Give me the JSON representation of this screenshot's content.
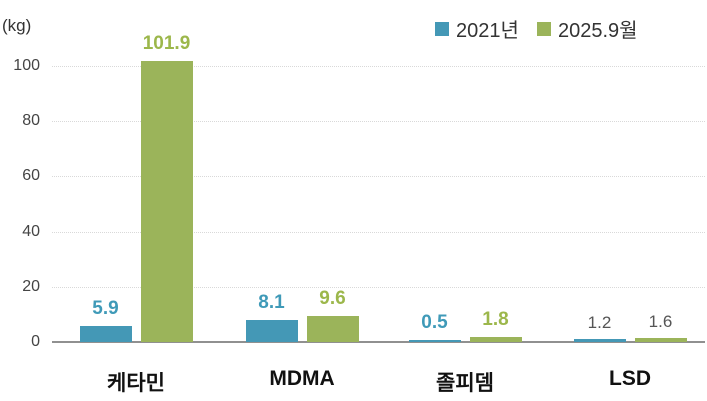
{
  "chart_data": {
    "type": "bar",
    "title": "",
    "ylabel": "(kg)",
    "unit": "kg",
    "categories": [
      "케타민",
      "MDMA",
      "졸피뎀",
      "LSD"
    ],
    "series": [
      {
        "name": "2021년",
        "color": "#4498b6",
        "label_color": "#3f9ab8",
        "values": [
          5.9,
          8.1,
          0.5,
          1.2
        ]
      },
      {
        "name": "2025.9월",
        "color": "#9bb45a",
        "label_color": "#9cb74b",
        "values": [
          101.9,
          9.6,
          1.8,
          1.6
        ]
      }
    ],
    "yticks": [
      0,
      20,
      40,
      60,
      80,
      100
    ],
    "ylim": [
      0,
      107
    ],
    "grid": "horizontal-dotted",
    "legend_position": "top-right",
    "neutral_label_categories": [
      "LSD"
    ],
    "neutral_label_color": "#555555"
  }
}
